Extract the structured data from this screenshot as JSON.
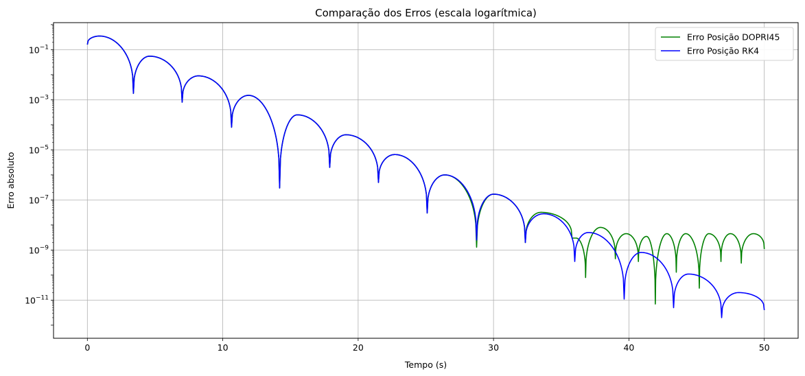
{
  "chart_data": {
    "type": "line",
    "title": "Comparação dos Erros (escala logarítmica)",
    "xlabel": "Tempo (s)",
    "ylabel": "Erro absoluto",
    "xlim": [
      -2.5,
      52.5
    ],
    "ylim": [
      3e-13,
      1.2
    ],
    "y_scale": "log",
    "grid": true,
    "legend_position": "top-right",
    "x_ticks": [
      0,
      10,
      20,
      30,
      40,
      50
    ],
    "x_tick_labels": [
      "0",
      "10",
      "20",
      "30",
      "40",
      "50"
    ],
    "y_ticks": [
      1e-11,
      1e-09,
      1e-07,
      1e-05,
      0.001,
      0.1
    ],
    "y_tick_labels": [
      {
        "base": "10",
        "exp": "−11"
      },
      {
        "base": "10",
        "exp": "−9"
      },
      {
        "base": "10",
        "exp": "−7"
      },
      {
        "base": "10",
        "exp": "−5"
      },
      {
        "base": "10",
        "exp": "−3"
      },
      {
        "base": "10",
        "exp": "−1"
      }
    ],
    "series": [
      {
        "name": "Erro Posição DOPRI45",
        "color": "#008000",
        "lobes": [
          {
            "start": 0,
            "peak_t": 0.9,
            "peak": 0.35,
            "end": 3.4,
            "dip": 0.0018,
            "start_value": 0.16
          },
          {
            "start": 3.4,
            "peak_t": 4.6,
            "peak": 0.055,
            "end": 7.0,
            "dip": 0.0008
          },
          {
            "start": 7.0,
            "peak_t": 8.2,
            "peak": 0.009,
            "end": 10.65,
            "dip": 8e-05
          },
          {
            "start": 10.65,
            "peak_t": 11.9,
            "peak": 0.0015,
            "end": 14.2,
            "dip": 3e-07
          },
          {
            "start": 14.2,
            "peak_t": 15.5,
            "peak": 0.00025,
            "end": 17.9,
            "dip": 2e-06
          },
          {
            "start": 17.9,
            "peak_t": 19.1,
            "peak": 4e-05,
            "end": 21.5,
            "dip": 5e-07
          },
          {
            "start": 21.5,
            "peak_t": 22.7,
            "peak": 6.5e-06,
            "end": 25.1,
            "dip": 3e-08
          },
          {
            "start": 25.1,
            "peak_t": 26.4,
            "peak": 1e-06,
            "end": 28.75,
            "dip": 1.3e-09
          },
          {
            "start": 28.75,
            "peak_t": 30.0,
            "peak": 1.7e-07,
            "end": 32.35,
            "dip": 2e-09
          },
          {
            "start": 32.35,
            "peak_t": 33.5,
            "peak": 3.2e-08,
            "end": 35.8,
            "dip": 3e-09,
            "end_value": 3e-09
          },
          {
            "start": 35.8,
            "peak_t": 36.1,
            "peak": 3e-09,
            "end": 36.8,
            "dip": 8e-11
          },
          {
            "start": 36.8,
            "peak_t": 37.9,
            "peak": 8e-09,
            "end": 39.0,
            "dip": 4.5e-10
          },
          {
            "start": 39.0,
            "peak_t": 39.8,
            "peak": 4.5e-09,
            "end": 40.7,
            "dip": 3.5e-10
          },
          {
            "start": 40.7,
            "peak_t": 41.3,
            "peak": 3.5e-09,
            "end": 41.95,
            "dip": 7e-12
          },
          {
            "start": 41.95,
            "peak_t": 42.8,
            "peak": 4.5e-09,
            "end": 43.5,
            "dip": 1.3e-10
          },
          {
            "start": 43.5,
            "peak_t": 44.2,
            "peak": 4.5e-09,
            "end": 45.2,
            "dip": 3e-11
          },
          {
            "start": 45.2,
            "peak_t": 45.9,
            "peak": 4.5e-09,
            "end": 46.8,
            "dip": 3.5e-10
          },
          {
            "start": 46.8,
            "peak_t": 47.5,
            "peak": 4.5e-09,
            "end": 48.3,
            "dip": 3e-10
          },
          {
            "start": 48.3,
            "peak_t": 49.2,
            "peak": 4.5e-09,
            "end": 50.0,
            "dip": 4.5e-11,
            "end_value": 1.1e-09
          }
        ]
      },
      {
        "name": "Erro Posição RK4",
        "color": "#0000ff",
        "lobes": [
          {
            "start": 0,
            "peak_t": 0.9,
            "peak": 0.35,
            "end": 3.4,
            "dip": 0.0018,
            "start_value": 0.16
          },
          {
            "start": 3.4,
            "peak_t": 4.6,
            "peak": 0.055,
            "end": 7.0,
            "dip": 0.0008
          },
          {
            "start": 7.0,
            "peak_t": 8.2,
            "peak": 0.009,
            "end": 10.65,
            "dip": 8e-05
          },
          {
            "start": 10.65,
            "peak_t": 11.9,
            "peak": 0.0015,
            "end": 14.2,
            "dip": 3e-07
          },
          {
            "start": 14.2,
            "peak_t": 15.5,
            "peak": 0.00025,
            "end": 17.9,
            "dip": 2e-06
          },
          {
            "start": 17.9,
            "peak_t": 19.1,
            "peak": 4e-05,
            "end": 21.5,
            "dip": 5e-07
          },
          {
            "start": 21.5,
            "peak_t": 22.7,
            "peak": 6.5e-06,
            "end": 25.1,
            "dip": 3e-08
          },
          {
            "start": 25.1,
            "peak_t": 26.4,
            "peak": 1e-06,
            "end": 28.75,
            "dip": 2.5e-09
          },
          {
            "start": 28.75,
            "peak_t": 30.0,
            "peak": 1.7e-07,
            "end": 32.35,
            "dip": 2e-09
          },
          {
            "start": 32.35,
            "peak_t": 33.7,
            "peak": 2.8e-08,
            "end": 36.0,
            "dip": 3.5e-10
          },
          {
            "start": 36.0,
            "peak_t": 37.0,
            "peak": 5e-09,
            "end": 39.65,
            "dip": 1.1e-11
          },
          {
            "start": 39.65,
            "peak_t": 40.9,
            "peak": 8e-10,
            "end": 43.3,
            "dip": 5e-12
          },
          {
            "start": 43.3,
            "peak_t": 44.4,
            "peak": 1.1e-10,
            "end": 46.85,
            "dip": 2e-12
          },
          {
            "start": 46.85,
            "peak_t": 48.1,
            "peak": 2e-11,
            "end": 50.0,
            "dip": 4e-12,
            "end_value": 4e-12
          }
        ]
      }
    ]
  }
}
